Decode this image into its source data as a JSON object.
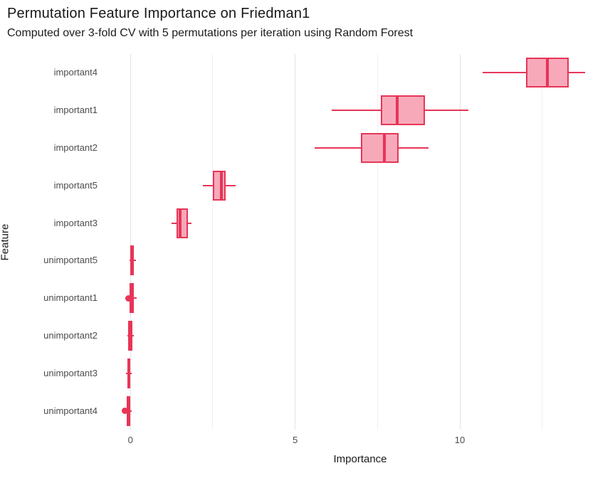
{
  "header": {
    "title": "Permutation Feature Importance on Friedman1",
    "subtitle": "Computed over 3-fold CV with 5 permutations per iteration using Random Forest"
  },
  "chart_data": {
    "type": "boxplot",
    "orientation": "horizontal",
    "title": "Permutation Feature Importance on Friedman1",
    "subtitle": "Computed over 3-fold CV with 5 permutations per iteration using Random Forest",
    "xlabel": "Importance",
    "ylabel": "Feature",
    "xlim": [
      -0.46,
      14.43
    ],
    "x_ticks": [
      0,
      5,
      10
    ],
    "x_gridlines_major": [
      0,
      5,
      10
    ],
    "x_gridlines_minor": [
      2.5,
      7.5,
      12.5
    ],
    "grid": "vertical-only",
    "legend": "none",
    "colors": {
      "stroke": "#E73557",
      "fill": "#F7A9BA",
      "background": "#FFFFFF",
      "gridline_major": "#E3E3E3",
      "gridline_minor": "#F0F0F0"
    },
    "categories": [
      "important4",
      "important1",
      "important2",
      "important5",
      "important3",
      "unimportant5",
      "unimportant1",
      "unimportant2",
      "unimportant3",
      "unimportant4"
    ],
    "series": [
      {
        "label": "important4",
        "whisker_low": 10.7,
        "q1": 12.0,
        "median": 12.65,
        "q3": 13.3,
        "whisker_high": 13.8,
        "outliers": []
      },
      {
        "label": "important1",
        "whisker_low": 6.1,
        "q1": 7.6,
        "median": 8.1,
        "q3": 8.95,
        "whisker_high": 10.25,
        "outliers": []
      },
      {
        "label": "important2",
        "whisker_low": 5.6,
        "q1": 7.0,
        "median": 7.7,
        "q3": 8.15,
        "whisker_high": 9.05,
        "outliers": []
      },
      {
        "label": "important5",
        "whisker_low": 2.2,
        "q1": 2.5,
        "median": 2.75,
        "q3": 2.9,
        "whisker_high": 3.2,
        "outliers": []
      },
      {
        "label": "important3",
        "whisker_low": 1.25,
        "q1": 1.4,
        "median": 1.5,
        "q3": 1.75,
        "whisker_high": 1.85,
        "outliers": []
      },
      {
        "label": "unimportant5",
        "whisker_low": -0.02,
        "q1": 0.0,
        "median": 0.05,
        "q3": 0.1,
        "whisker_high": 0.16,
        "outliers": []
      },
      {
        "label": "unimportant1",
        "whisker_low": -0.15,
        "q1": -0.03,
        "median": 0.04,
        "q3": 0.1,
        "whisker_high": 0.18,
        "outliers": [
          -0.06
        ]
      },
      {
        "label": "unimportant2",
        "whisker_low": -0.1,
        "q1": -0.08,
        "median": 0.0,
        "q3": 0.06,
        "whisker_high": 0.1,
        "outliers": []
      },
      {
        "label": "unimportant3",
        "whisker_low": -0.13,
        "q1": -0.1,
        "median": -0.05,
        "q3": 0.0,
        "whisker_high": 0.03,
        "outliers": []
      },
      {
        "label": "unimportant4",
        "whisker_low": -0.15,
        "q1": -0.12,
        "median": -0.06,
        "q3": -0.01,
        "whisker_high": 0.04,
        "outliers": [
          -0.17
        ]
      }
    ]
  }
}
